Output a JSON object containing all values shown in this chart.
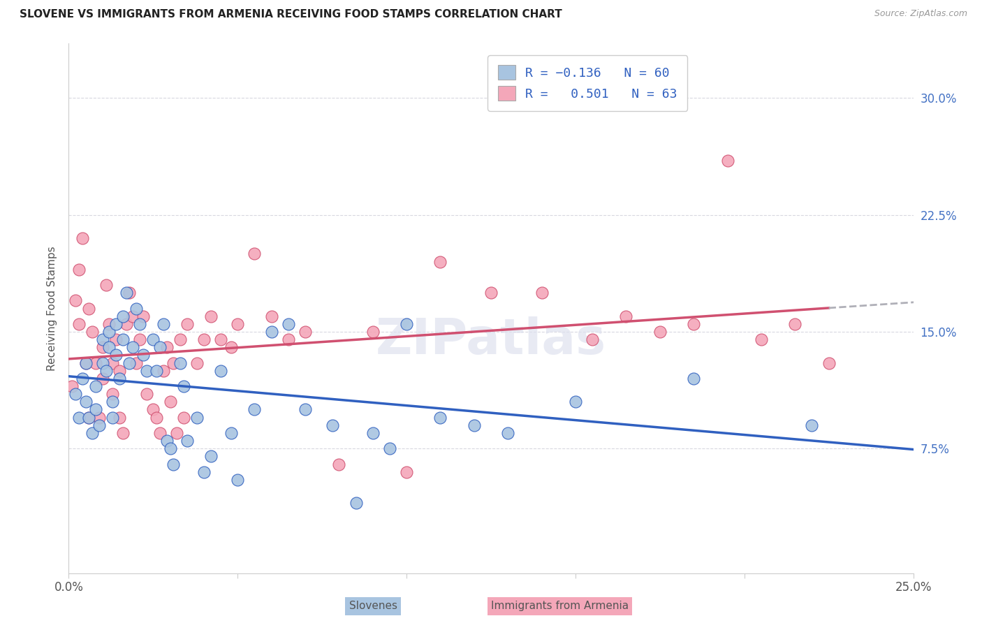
{
  "title": "SLOVENE VS IMMIGRANTS FROM ARMENIA RECEIVING FOOD STAMPS CORRELATION CHART",
  "source": "Source: ZipAtlas.com",
  "ylabel": "Receiving Food Stamps",
  "ytick_labels": [
    "7.5%",
    "15.0%",
    "22.5%",
    "30.0%"
  ],
  "ytick_values": [
    0.075,
    0.15,
    0.225,
    0.3
  ],
  "xlim": [
    0.0,
    0.25
  ],
  "ylim": [
    -0.005,
    0.335
  ],
  "color_slovene": "#a8c4e0",
  "color_armenia": "#f4a7b9",
  "color_slovene_line": "#3060c0",
  "color_armenia_line": "#d05070",
  "color_ext_line": "#b0b0b8",
  "watermark": "ZIPatlas",
  "bottom_label1": "Slovenes",
  "bottom_label2": "Immigrants from Armenia",
  "slovene_x": [
    0.002,
    0.003,
    0.004,
    0.005,
    0.005,
    0.006,
    0.007,
    0.008,
    0.008,
    0.009,
    0.01,
    0.01,
    0.011,
    0.012,
    0.012,
    0.013,
    0.013,
    0.014,
    0.014,
    0.015,
    0.016,
    0.016,
    0.017,
    0.018,
    0.019,
    0.02,
    0.021,
    0.022,
    0.023,
    0.025,
    0.026,
    0.027,
    0.028,
    0.029,
    0.03,
    0.031,
    0.033,
    0.034,
    0.035,
    0.038,
    0.04,
    0.042,
    0.045,
    0.048,
    0.05,
    0.055,
    0.06,
    0.065,
    0.07,
    0.078,
    0.085,
    0.09,
    0.095,
    0.1,
    0.11,
    0.12,
    0.13,
    0.15,
    0.185,
    0.22
  ],
  "slovene_y": [
    0.11,
    0.095,
    0.12,
    0.105,
    0.13,
    0.095,
    0.085,
    0.115,
    0.1,
    0.09,
    0.13,
    0.145,
    0.125,
    0.15,
    0.14,
    0.105,
    0.095,
    0.135,
    0.155,
    0.12,
    0.16,
    0.145,
    0.175,
    0.13,
    0.14,
    0.165,
    0.155,
    0.135,
    0.125,
    0.145,
    0.125,
    0.14,
    0.155,
    0.08,
    0.075,
    0.065,
    0.13,
    0.115,
    0.08,
    0.095,
    0.06,
    0.07,
    0.125,
    0.085,
    0.055,
    0.1,
    0.15,
    0.155,
    0.1,
    0.09,
    0.04,
    0.085,
    0.075,
    0.155,
    0.095,
    0.09,
    0.085,
    0.105,
    0.12,
    0.09
  ],
  "armenia_x": [
    0.001,
    0.002,
    0.003,
    0.003,
    0.004,
    0.005,
    0.006,
    0.006,
    0.007,
    0.008,
    0.009,
    0.01,
    0.01,
    0.011,
    0.012,
    0.013,
    0.013,
    0.014,
    0.015,
    0.015,
    0.016,
    0.017,
    0.018,
    0.019,
    0.02,
    0.021,
    0.022,
    0.023,
    0.025,
    0.026,
    0.027,
    0.028,
    0.029,
    0.03,
    0.031,
    0.032,
    0.033,
    0.034,
    0.035,
    0.038,
    0.04,
    0.042,
    0.045,
    0.048,
    0.05,
    0.055,
    0.06,
    0.065,
    0.07,
    0.08,
    0.09,
    0.1,
    0.11,
    0.125,
    0.14,
    0.155,
    0.165,
    0.175,
    0.185,
    0.195,
    0.205,
    0.215,
    0.225
  ],
  "armenia_y": [
    0.115,
    0.17,
    0.19,
    0.155,
    0.21,
    0.13,
    0.165,
    0.095,
    0.15,
    0.13,
    0.095,
    0.14,
    0.12,
    0.18,
    0.155,
    0.13,
    0.11,
    0.145,
    0.125,
    0.095,
    0.085,
    0.155,
    0.175,
    0.16,
    0.13,
    0.145,
    0.16,
    0.11,
    0.1,
    0.095,
    0.085,
    0.125,
    0.14,
    0.105,
    0.13,
    0.085,
    0.145,
    0.095,
    0.155,
    0.13,
    0.145,
    0.16,
    0.145,
    0.14,
    0.155,
    0.2,
    0.16,
    0.145,
    0.15,
    0.065,
    0.15,
    0.06,
    0.195,
    0.175,
    0.175,
    0.145,
    0.16,
    0.15,
    0.155,
    0.26,
    0.145,
    0.155,
    0.13
  ]
}
